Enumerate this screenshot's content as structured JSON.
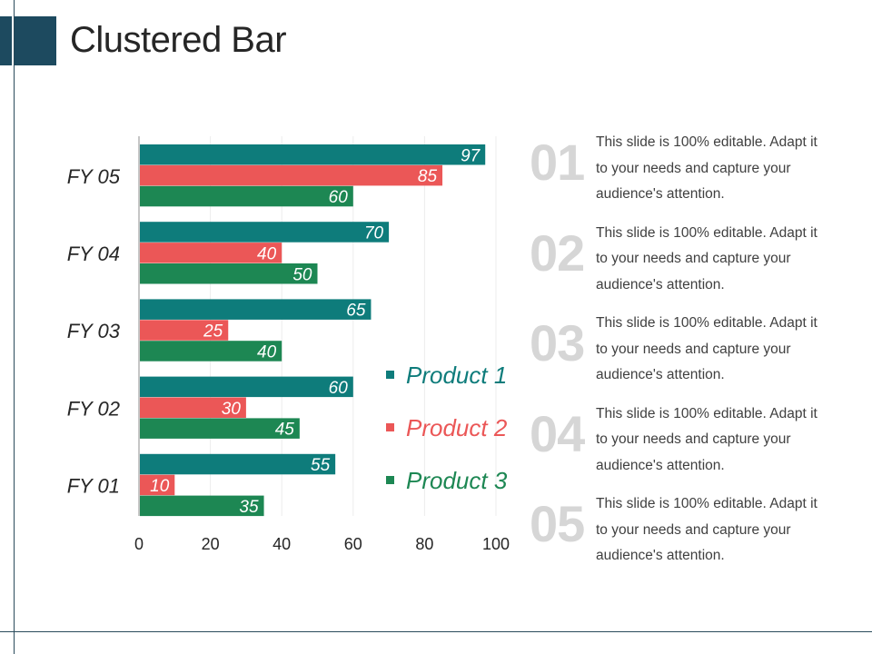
{
  "slide": {
    "title": "Clustered Bar"
  },
  "colors": {
    "accent": "#1d4a5f",
    "product1": "#0e7c7b",
    "product2": "#eb5757",
    "product3": "#1d8753",
    "note_number": "#d6d6d6"
  },
  "chart_data": {
    "type": "bar",
    "orientation": "horizontal",
    "categories": [
      "FY 05",
      "FY 04",
      "FY 03",
      "FY 02",
      "FY 01"
    ],
    "series": [
      {
        "name": "Product 1",
        "values": [
          97,
          70,
          65,
          60,
          55
        ]
      },
      {
        "name": "Product 2",
        "values": [
          85,
          40,
          25,
          30,
          10
        ]
      },
      {
        "name": "Product 3",
        "values": [
          60,
          50,
          40,
          45,
          35
        ]
      }
    ],
    "xlim": [
      0,
      100
    ],
    "xticks": [
      0,
      20,
      40,
      60,
      80,
      100
    ],
    "title": "",
    "xlabel": "",
    "ylabel": "",
    "grid": true,
    "legend": "inside-bottom-right"
  },
  "legend": {
    "items": [
      {
        "label": "Product 1",
        "color": "#0e7c7b"
      },
      {
        "label": "Product 2",
        "color": "#eb5757"
      },
      {
        "label": "Product 3",
        "color": "#1d8753"
      }
    ]
  },
  "notes": [
    {
      "num": "01",
      "text": "This slide is 100% editable. Adapt it to your needs and capture your audience's attention."
    },
    {
      "num": "02",
      "text": "This slide is 100% editable. Adapt it to your needs and capture your audience's attention."
    },
    {
      "num": "03",
      "text": "This slide is 100% editable. Adapt it to your needs and capture your audience's attention."
    },
    {
      "num": "04",
      "text": "This slide is 100% editable. Adapt it to your needs and capture your audience's attention."
    },
    {
      "num": "05",
      "text": "This slide is 100% editable. Adapt it to your needs and capture your audience's attention."
    }
  ]
}
